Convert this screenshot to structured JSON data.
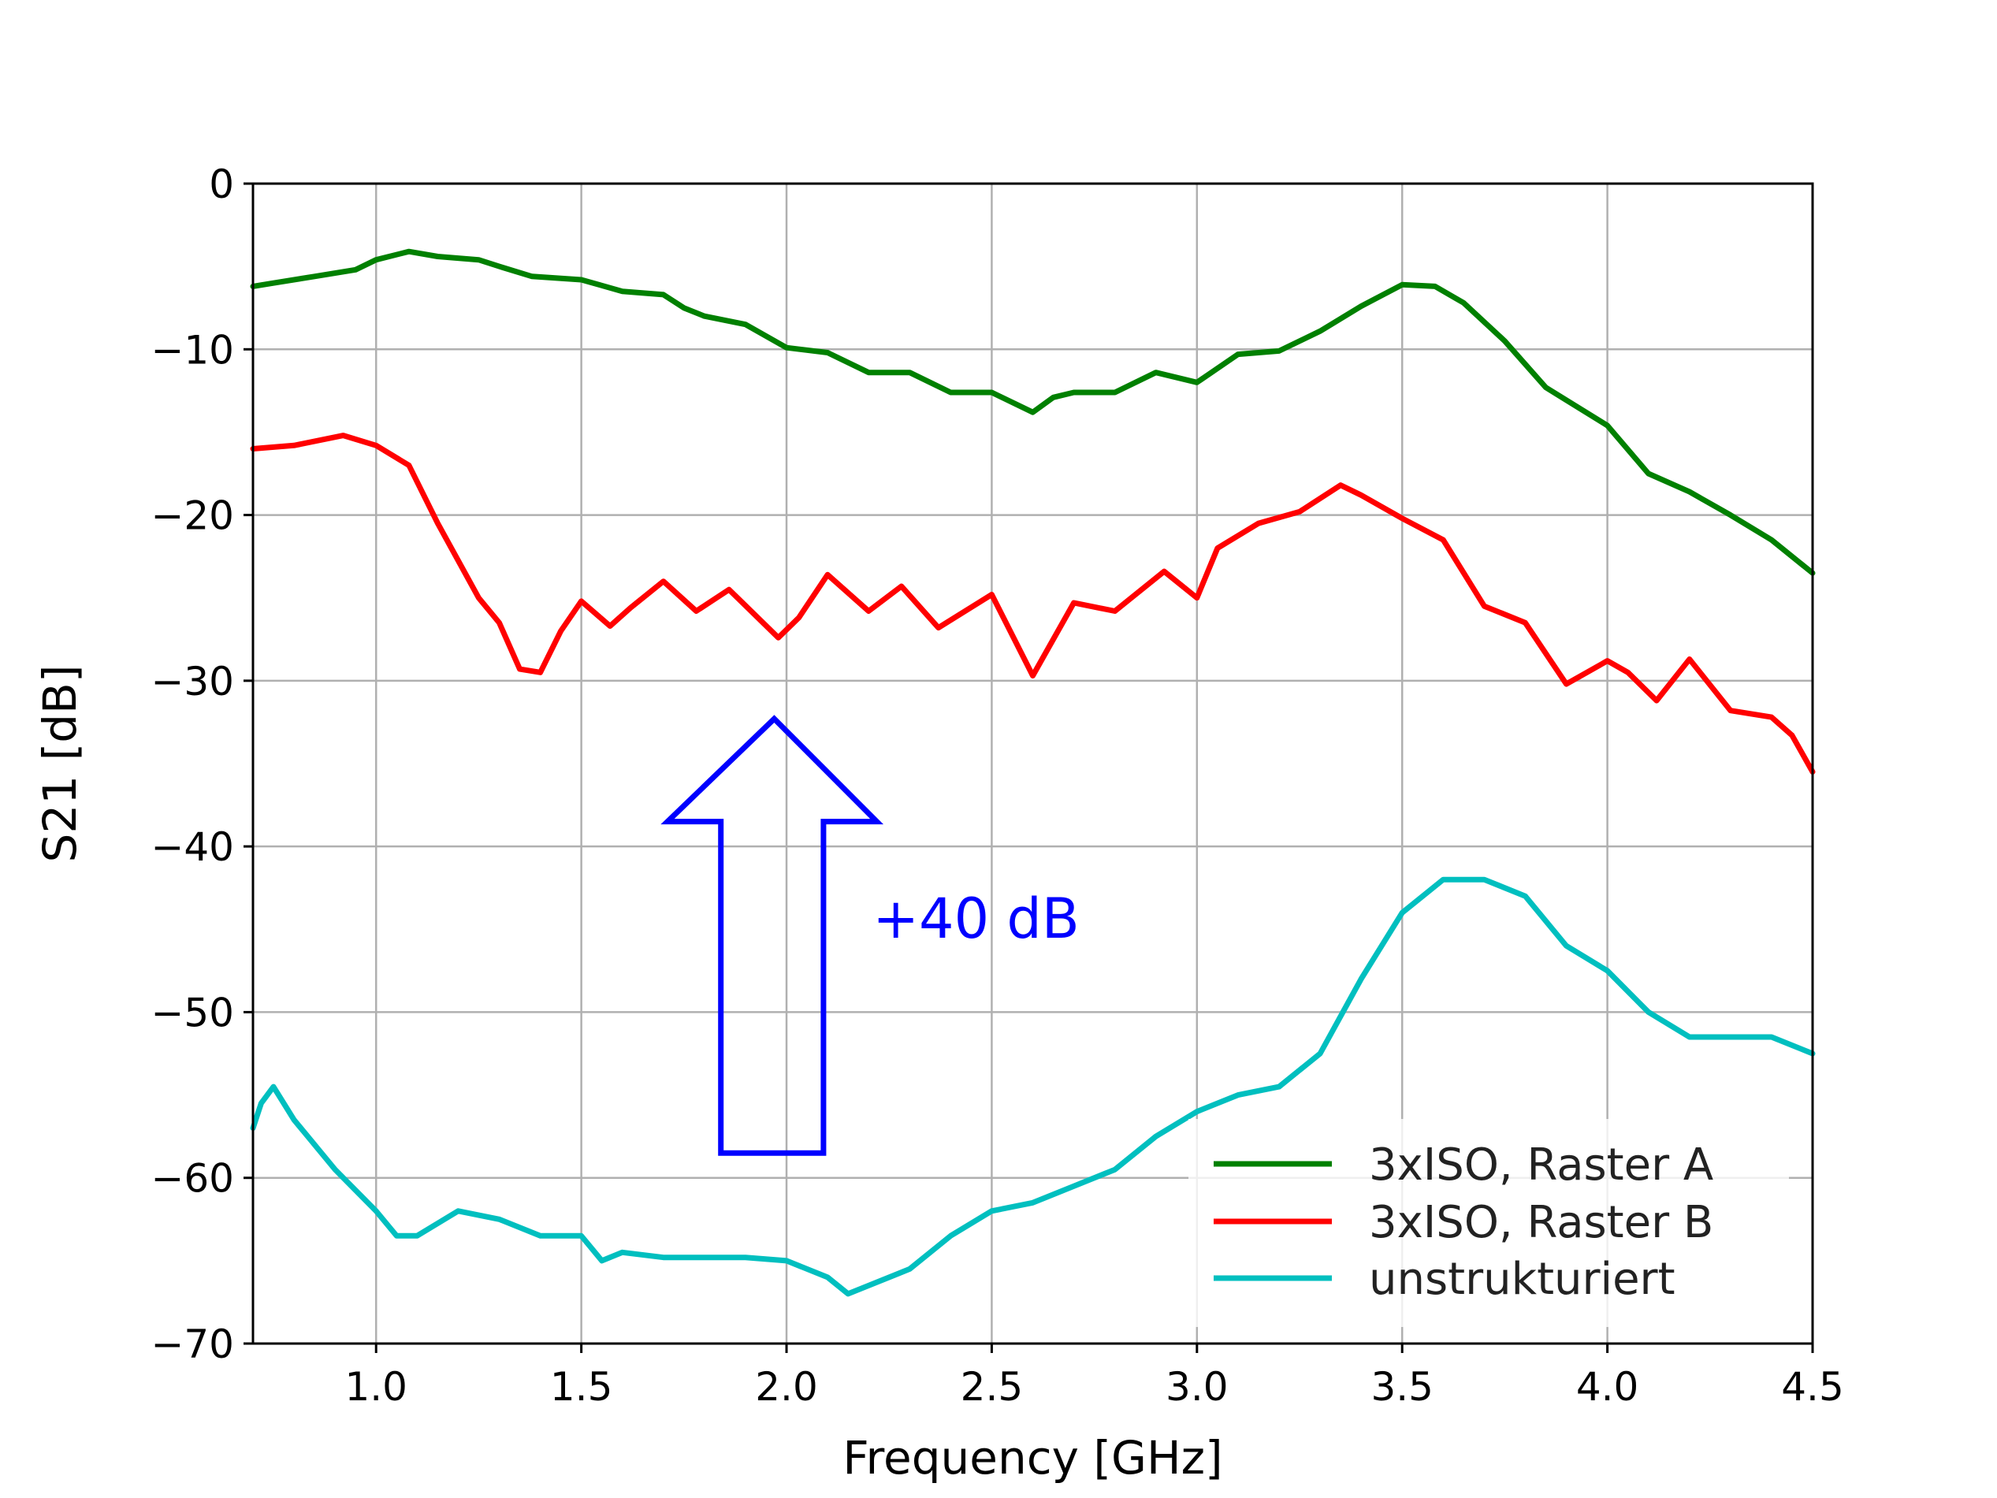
{
  "chart_data": {
    "type": "line",
    "xlabel": "Frequency [GHz]",
    "ylabel": "S21 [dB]",
    "xlim": [
      0.7,
      4.5
    ],
    "ylim": [
      -70,
      0
    ],
    "xticks": [
      1.0,
      1.5,
      2.0,
      2.5,
      3.0,
      3.5,
      4.0,
      4.5
    ],
    "xtick_labels": [
      "1.0",
      "1.5",
      "2.0",
      "2.5",
      "3.0",
      "3.5",
      "4.0",
      "4.5"
    ],
    "yticks": [
      0,
      -10,
      -20,
      -30,
      -40,
      -50,
      -60,
      -70
    ],
    "ytick_labels": [
      "0",
      "−10",
      "−20",
      "−30",
      "−40",
      "−50",
      "−60",
      "−70"
    ],
    "grid": true,
    "legend_position": "bottom-right",
    "series": [
      {
        "name": "3xISO, Raster A",
        "color": "#008000",
        "x": [
          0.7,
          0.75,
          0.85,
          0.95,
          1.0,
          1.08,
          1.15,
          1.25,
          1.3,
          1.38,
          1.5,
          1.6,
          1.7,
          1.75,
          1.8,
          1.9,
          2.0,
          2.1,
          2.2,
          2.3,
          2.4,
          2.5,
          2.6,
          2.65,
          2.7,
          2.8,
          2.9,
          3.0,
          3.1,
          3.2,
          3.3,
          3.4,
          3.5,
          3.58,
          3.65,
          3.75,
          3.85,
          4.0,
          4.1,
          4.2,
          4.3,
          4.4,
          4.5
        ],
        "y": [
          -6.2,
          -6.0,
          -5.6,
          -5.2,
          -4.6,
          -4.1,
          -4.4,
          -4.6,
          -5.0,
          -5.6,
          -5.8,
          -6.5,
          -6.7,
          -7.5,
          -8.0,
          -8.5,
          -9.9,
          -10.2,
          -11.4,
          -11.4,
          -12.6,
          -12.6,
          -13.8,
          -12.9,
          -12.6,
          -12.6,
          -11.4,
          -12.0,
          -10.3,
          -10.1,
          -8.9,
          -7.4,
          -6.1,
          -6.2,
          -7.2,
          -9.5,
          -12.3,
          -14.6,
          -17.5,
          -18.6,
          -20.0,
          -21.5,
          -23.5
        ]
      },
      {
        "name": "3xISO, Raster B",
        "color": "#ff0000",
        "x": [
          0.7,
          0.8,
          0.92,
          1.0,
          1.08,
          1.15,
          1.25,
          1.3,
          1.35,
          1.4,
          1.45,
          1.5,
          1.57,
          1.62,
          1.7,
          1.78,
          1.86,
          1.98,
          2.03,
          2.1,
          2.2,
          2.28,
          2.37,
          2.5,
          2.6,
          2.7,
          2.8,
          2.92,
          3.0,
          3.05,
          3.15,
          3.25,
          3.35,
          3.4,
          3.5,
          3.6,
          3.7,
          3.8,
          3.9,
          4.0,
          4.05,
          4.12,
          4.2,
          4.3,
          4.4,
          4.45,
          4.5
        ],
        "y": [
          -16.0,
          -15.8,
          -15.2,
          -15.8,
          -17.0,
          -20.5,
          -25.0,
          -26.5,
          -29.3,
          -29.5,
          -27.0,
          -25.2,
          -26.7,
          -25.6,
          -24.0,
          -25.8,
          -24.5,
          -27.4,
          -26.2,
          -23.6,
          -25.8,
          -24.3,
          -26.8,
          -24.8,
          -29.7,
          -25.3,
          -25.8,
          -23.4,
          -25.0,
          -22.0,
          -20.5,
          -19.8,
          -18.2,
          -18.8,
          -20.2,
          -21.5,
          -25.5,
          -26.5,
          -30.2,
          -28.8,
          -29.5,
          -31.2,
          -28.7,
          -31.8,
          -32.2,
          -33.3,
          -35.5
        ]
      },
      {
        "name": "unstrukturiert",
        "color": "#00bfbf",
        "x": [
          0.7,
          0.72,
          0.75,
          0.8,
          0.9,
          1.0,
          1.05,
          1.1,
          1.2,
          1.3,
          1.4,
          1.5,
          1.55,
          1.6,
          1.7,
          1.8,
          1.9,
          2.0,
          2.1,
          2.15,
          2.2,
          2.3,
          2.4,
          2.5,
          2.6,
          2.7,
          2.8,
          2.9,
          3.0,
          3.1,
          3.2,
          3.3,
          3.4,
          3.5,
          3.6,
          3.65,
          3.7,
          3.8,
          3.9,
          4.0,
          4.1,
          4.2,
          4.3,
          4.4,
          4.5
        ],
        "y": [
          -57.0,
          -55.5,
          -54.5,
          -56.5,
          -59.5,
          -62.0,
          -63.5,
          -63.5,
          -62.0,
          -62.5,
          -63.5,
          -63.5,
          -65.0,
          -64.5,
          -64.8,
          -64.8,
          -64.8,
          -65.0,
          -66.0,
          -67.0,
          -66.5,
          -65.5,
          -63.5,
          -62.0,
          -61.5,
          -60.5,
          -59.5,
          -57.5,
          -56.0,
          -55.0,
          -54.5,
          -52.5,
          -48.0,
          -44.0,
          -42.0,
          -42.0,
          -42.0,
          -43.0,
          -46.0,
          -47.5,
          -50.0,
          -51.5,
          -51.5,
          -51.5,
          -52.5
        ]
      }
    ],
    "annotation": {
      "text": "+40 dB",
      "color": "#0000ff",
      "arrow": {
        "x_left": 1.84,
        "x_right": 2.09,
        "x_head_left": 1.71,
        "x_head_right": 2.22,
        "x_tip": 1.97,
        "y_base": -58.5,
        "y_shoulder": -38.5,
        "y_tip": -32.3
      },
      "text_pos": {
        "x": 2.21,
        "y": -45.5
      }
    }
  }
}
